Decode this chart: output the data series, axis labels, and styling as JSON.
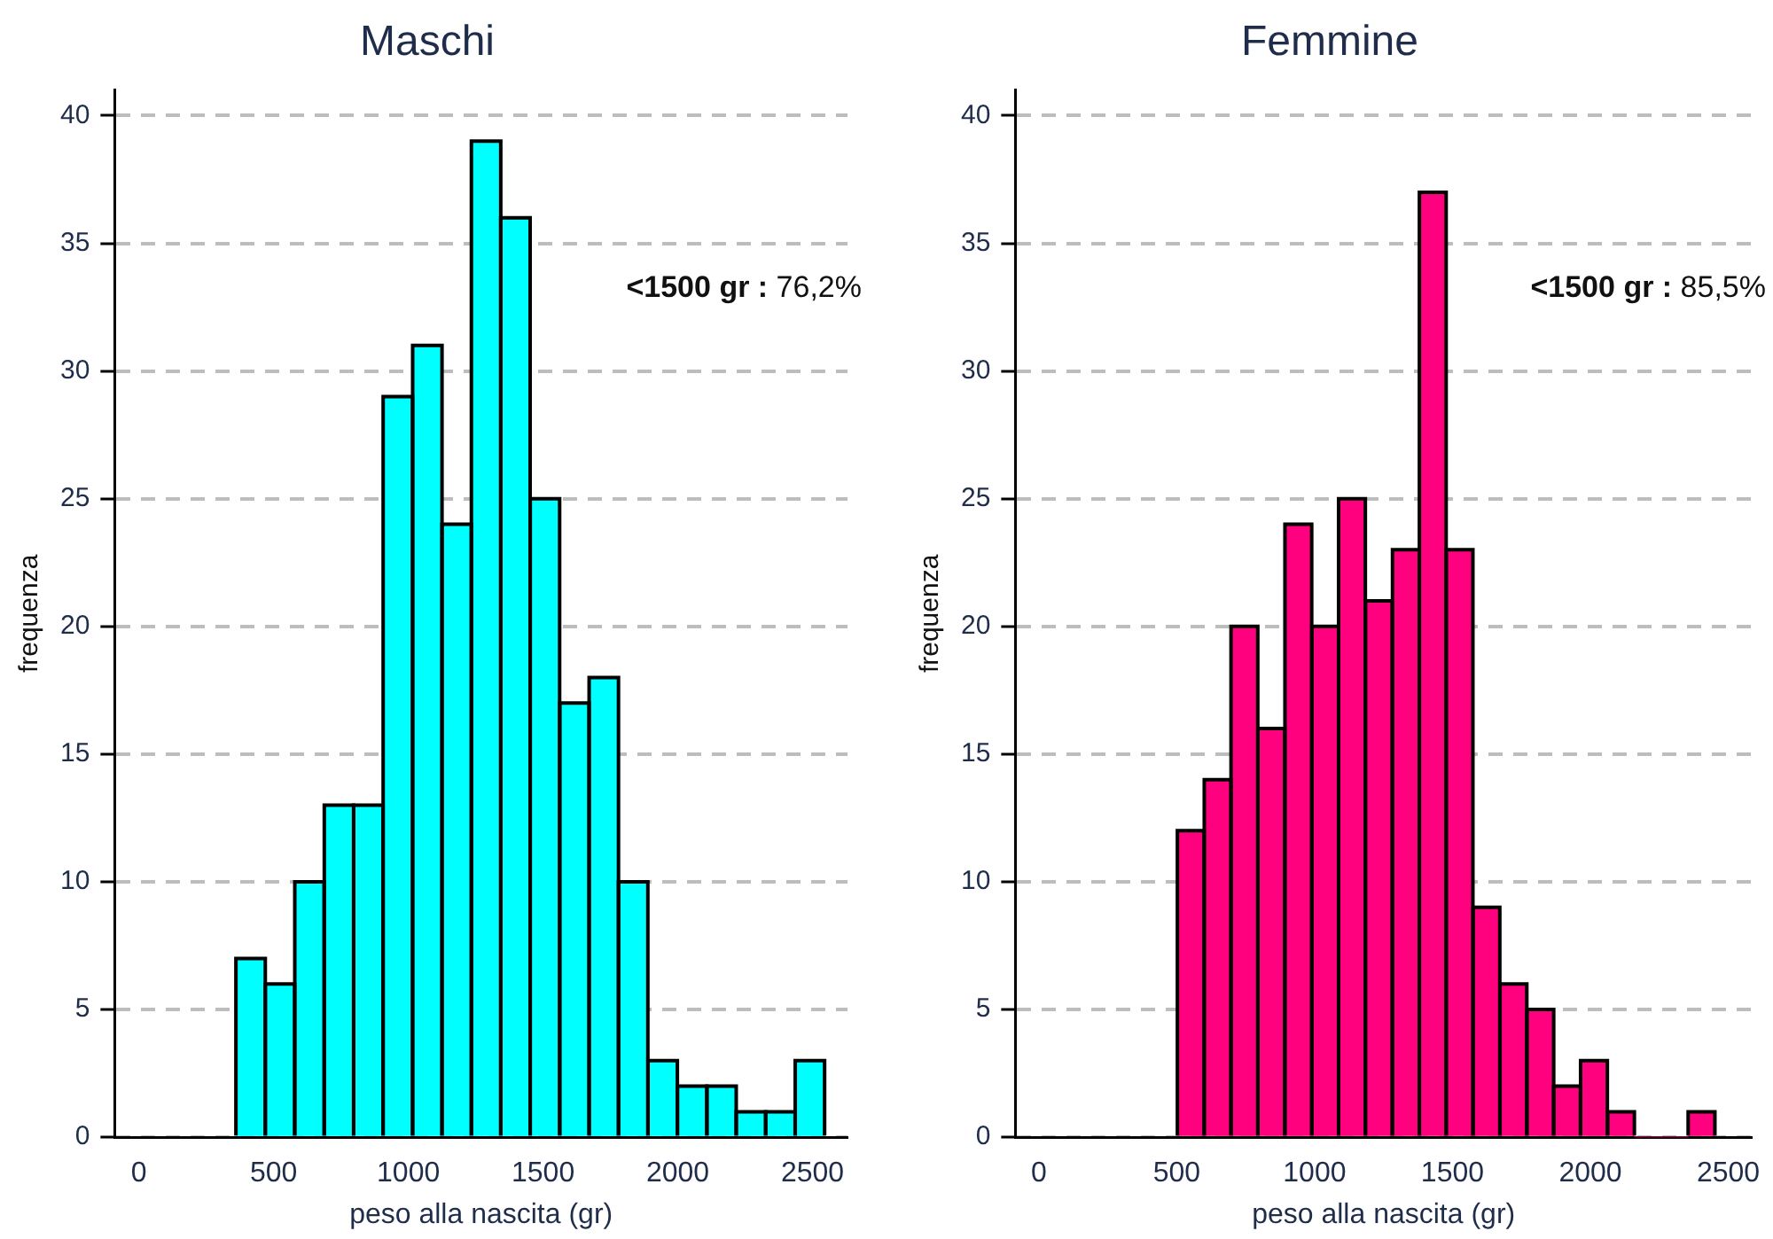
{
  "chart_data": [
    {
      "type": "histogram",
      "title": "Maschi",
      "xlabel": "peso alla nascita (gr)",
      "ylabel": "frequenza",
      "color": "#00ffff",
      "bins": [
        360,
        469,
        578,
        688,
        797,
        906,
        1016,
        1125,
        1234,
        1343,
        1452,
        1562,
        1671,
        1780,
        1889,
        1999,
        2108,
        2217,
        2326,
        2436,
        2545
      ],
      "values": [
        7,
        6,
        10,
        13,
        13,
        29,
        31,
        24,
        39,
        36,
        25,
        17,
        18,
        10,
        3,
        2,
        2,
        1,
        1,
        3
      ],
      "xlim": [
        -90,
        2630
      ],
      "xticks": [
        0,
        500,
        1000,
        1500,
        2000,
        2500
      ],
      "ylim": [
        0,
        41
      ],
      "yticks": [
        0,
        5,
        10,
        15,
        20,
        25,
        30,
        35,
        40
      ],
      "grid": "y",
      "annotations": [
        "<1500 gr : 76,2%"
      ]
    },
    {
      "type": "histogram",
      "title": "Femmine",
      "xlabel": "peso alla nascita (gr)",
      "ylabel": "frequenza",
      "color": "#ff007f",
      "bins": [
        502,
        600,
        697,
        794,
        892,
        990,
        1087,
        1184,
        1282,
        1380,
        1477,
        1574,
        1672,
        1770,
        1867,
        1964,
        2062,
        2160,
        2257,
        2354,
        2452
      ],
      "values": [
        12,
        14,
        20,
        16,
        24,
        20,
        25,
        21,
        23,
        37,
        23,
        9,
        6,
        5,
        2,
        3,
        1,
        0,
        0,
        1
      ],
      "xlim": [
        -85,
        2585
      ],
      "xticks": [
        0,
        500,
        1000,
        1500,
        2000,
        2500
      ],
      "ylim": [
        0,
        41
      ],
      "yticks": [
        0,
        5,
        10,
        15,
        20,
        25,
        30,
        35,
        40
      ],
      "grid": "y",
      "annotations": [
        "<1500 gr : 85,5%"
      ]
    }
  ]
}
